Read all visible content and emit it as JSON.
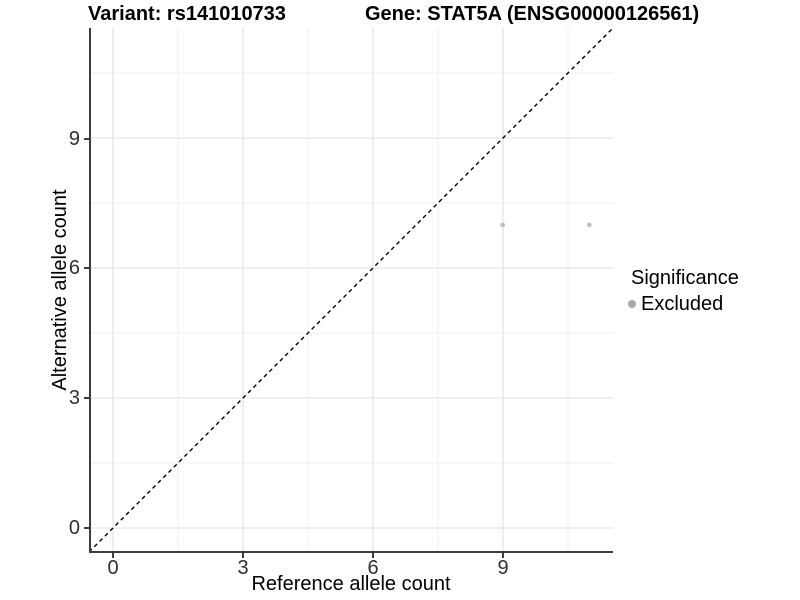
{
  "titles": {
    "variant": "Variant: rs141010733",
    "gene": "Gene: STAT5A (ENSG00000126561)"
  },
  "axes": {
    "x": {
      "label": "Reference allele count",
      "tick_labels": [
        "0",
        "3",
        "6",
        "9"
      ]
    },
    "y": {
      "label": "Alternative allele count",
      "tick_labels": [
        "0",
        "3",
        "6",
        "9"
      ]
    }
  },
  "legend": {
    "title": "Significance",
    "items": [
      {
        "label": "Excluded",
        "color": "#a8a8a8"
      }
    ]
  },
  "chart_data": {
    "type": "scatter",
    "title": "Variant: rs141010733 | Gene: STAT5A (ENSG00000126561)",
    "xlabel": "Reference allele count",
    "ylabel": "Alternative allele count",
    "xlim": [
      -0.55,
      11.55
    ],
    "ylim": [
      -0.55,
      11.55
    ],
    "x_ticks": [
      0,
      3,
      6,
      9
    ],
    "y_ticks": [
      0,
      3,
      6,
      9
    ],
    "grid": true,
    "minor_grid": true,
    "legend_position": "right",
    "series": [
      {
        "name": "Excluded",
        "color": "#bdbdbd",
        "points": [
          {
            "x": 9,
            "y": 7
          },
          {
            "x": 11,
            "y": 7
          }
        ]
      }
    ],
    "reference_line": {
      "kind": "identity y=x",
      "style": "dashed",
      "color": "#000000"
    }
  },
  "colors": {
    "axis_line": "#3c3c3c",
    "grid_major": "#e5e5e5",
    "grid_minor": "#efefef",
    "point": "#bdbdbd",
    "legend_key": "#a8a8a8"
  }
}
